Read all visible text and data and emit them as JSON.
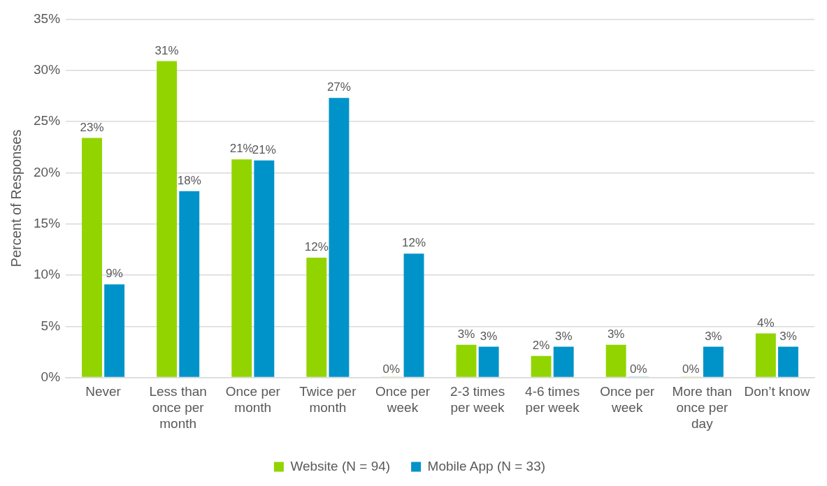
{
  "chart_data": {
    "type": "bar",
    "ylabel": "Percent of Responses",
    "categories": [
      "Never",
      "Less than once per month",
      "Once per month",
      "Twice per month",
      "Once per week",
      "2-3 times per week",
      "4-6 times per week",
      "Once per week",
      "More than once per day",
      "Don’t know"
    ],
    "series": [
      {
        "name": "Website (N = 94)",
        "color": "#92d400",
        "values": [
          23.4,
          30.9,
          21.3,
          11.7,
          0,
          3.2,
          2.1,
          3.2,
          0,
          4.3
        ],
        "value_labels": [
          "23%",
          "31%",
          "21%",
          "12%",
          "0%",
          "3%",
          "2%",
          "3%",
          "0%",
          "4%"
        ]
      },
      {
        "name": "Mobile App (N = 33)",
        "color": "#0093c9",
        "values": [
          9.1,
          18.2,
          21.2,
          27.3,
          12.1,
          3.0,
          3.0,
          0,
          3.0,
          3.0
        ],
        "value_labels": [
          "9%",
          "18%",
          "21%",
          "27%",
          "12%",
          "3%",
          "3%",
          "0%",
          "3%",
          "3%"
        ]
      }
    ],
    "ylim": [
      0,
      35
    ],
    "yticks": [
      {
        "value": 0,
        "label": "0%"
      },
      {
        "value": 5,
        "label": "5%"
      },
      {
        "value": 10,
        "label": "10%"
      },
      {
        "value": 15,
        "label": "15%"
      },
      {
        "value": 20,
        "label": "20%"
      },
      {
        "value": 25,
        "label": "25%"
      },
      {
        "value": 30,
        "label": "30%"
      },
      {
        "value": 35,
        "label": "35%"
      }
    ],
    "grid": "y",
    "legend": "bottom"
  }
}
